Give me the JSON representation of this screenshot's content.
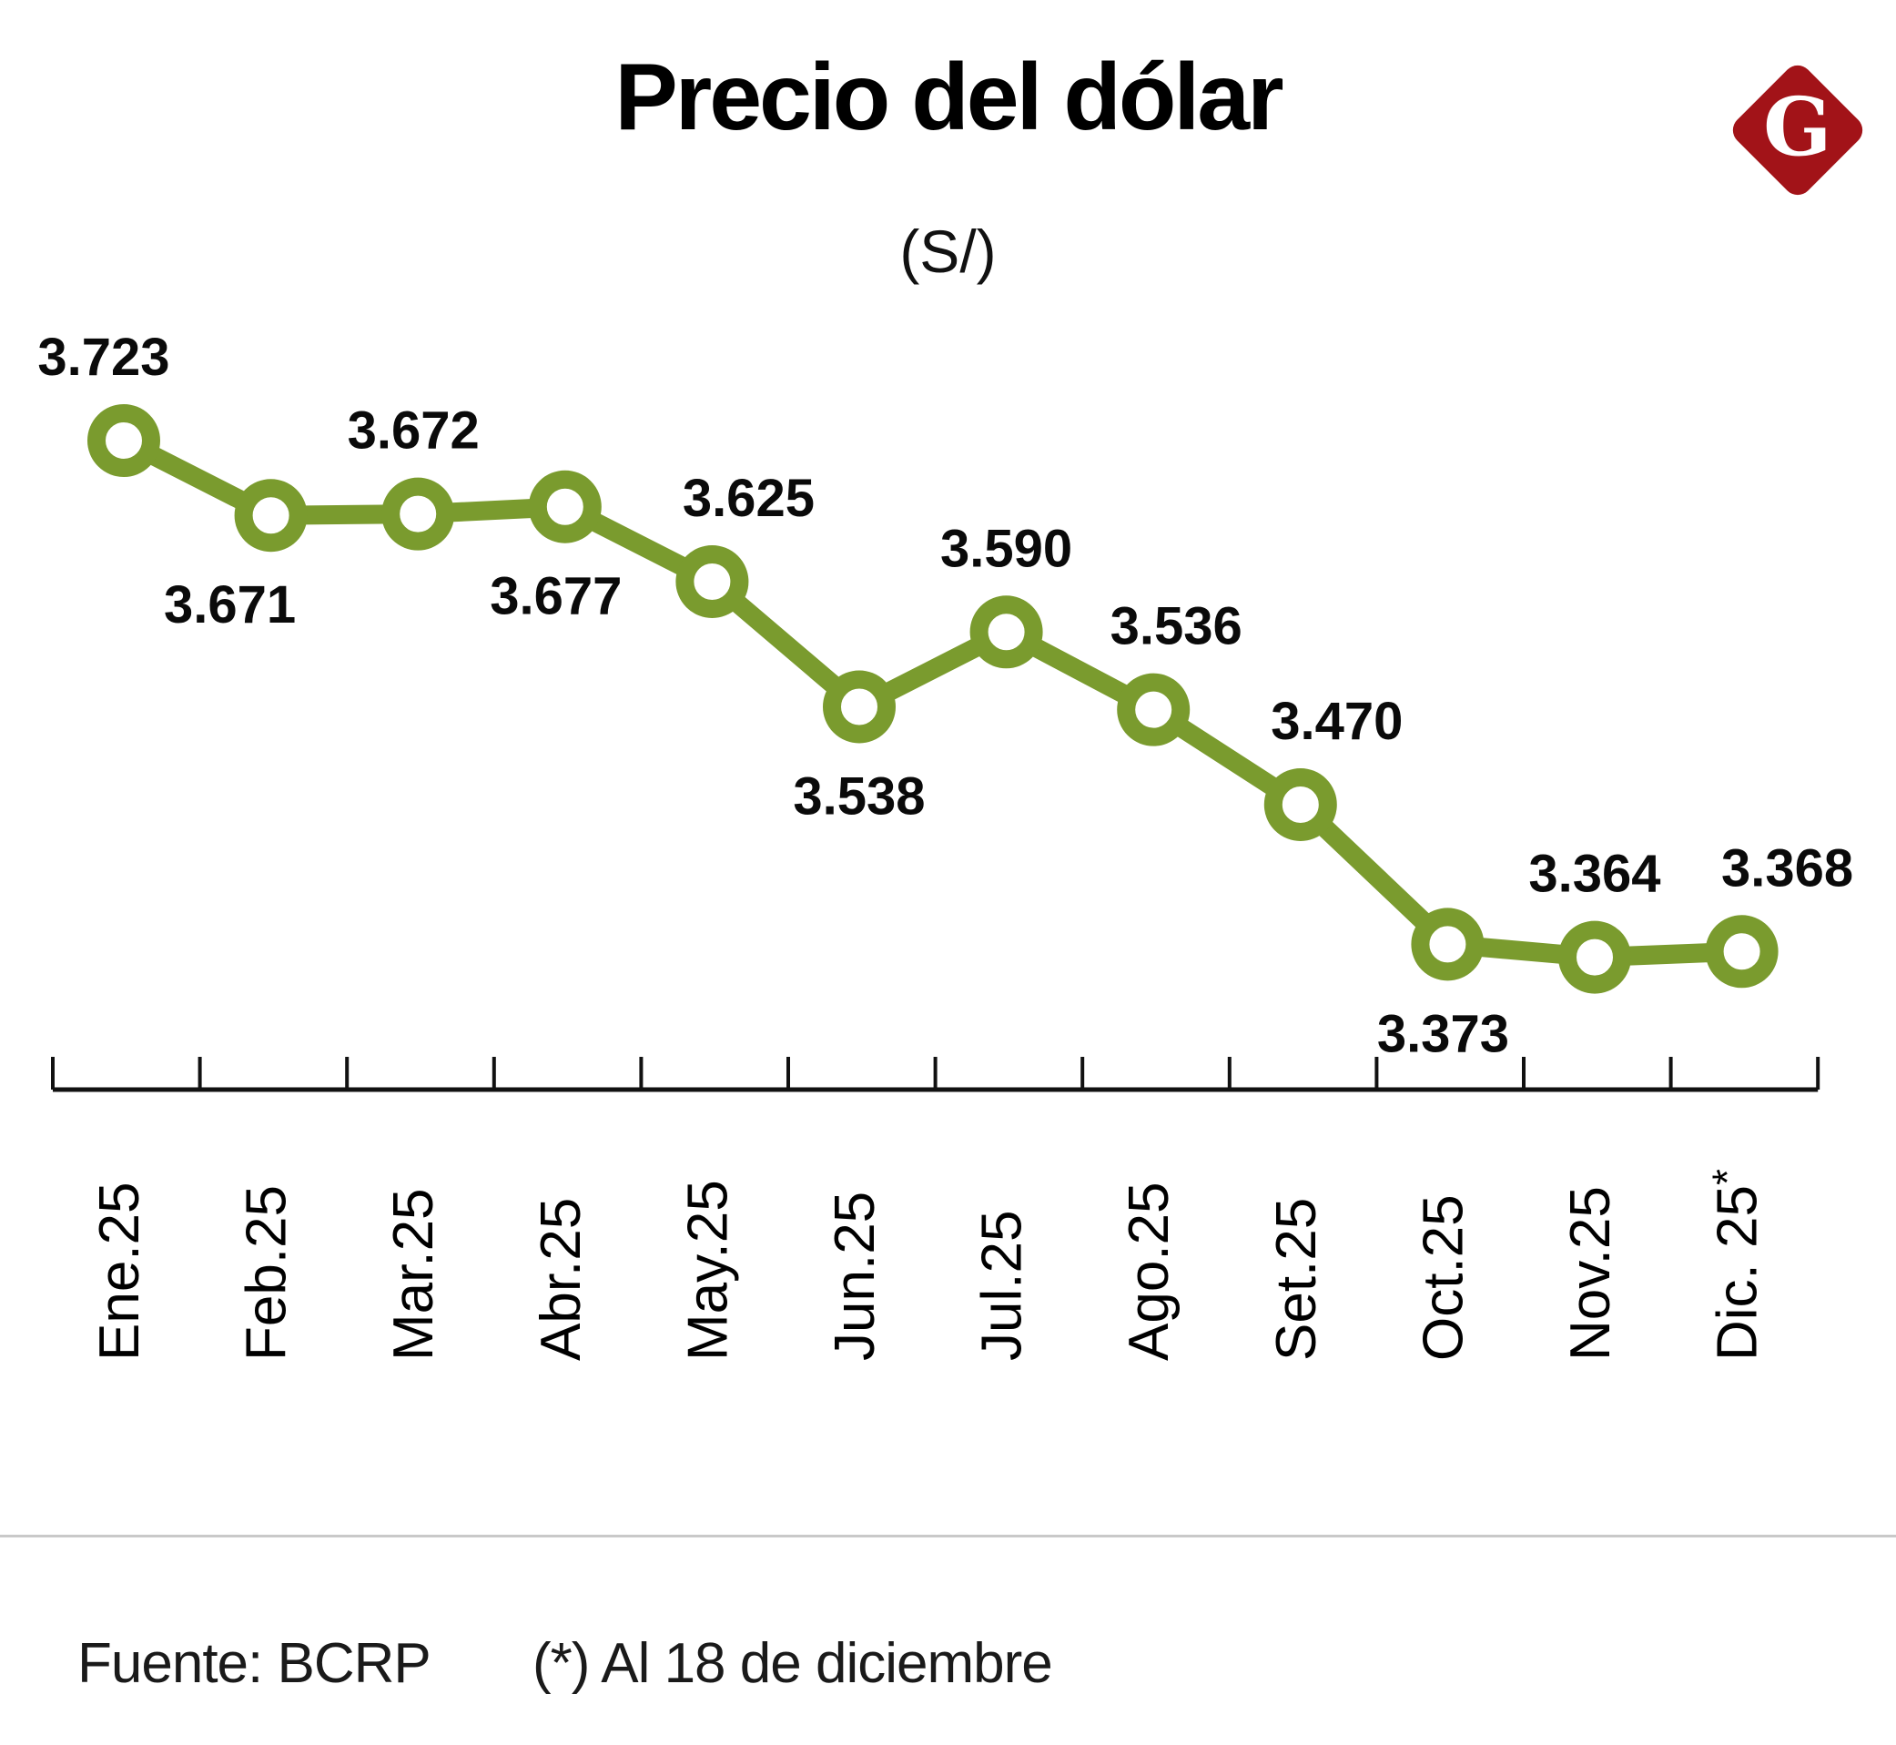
{
  "header": {
    "title": "Precio del dólar",
    "subtitle": "(S/)"
  },
  "logo": {
    "letter": "G",
    "color": "#A21318"
  },
  "footer": {
    "source": "Fuente: BCRP",
    "footnote": "(*) Al 18 de diciembre"
  },
  "colors": {
    "line": "#7A9B2E",
    "marker_fill": "#FFFFFF",
    "value_label": "#0A0A0A",
    "axis": "#111111",
    "month_label": "#000000"
  },
  "chart_data": {
    "type": "line",
    "title": "Precio del dólar",
    "unit": "S/",
    "categories": [
      "Ene.25",
      "Feb.25",
      "Mar.25",
      "Abr.25",
      "May.25",
      "Jun.25",
      "Jul.25",
      "Ago.25",
      "Set.25",
      "Oct.25",
      "Nov.25",
      "Dic. 25*"
    ],
    "values": [
      3.723,
      3.671,
      3.672,
      3.677,
      3.625,
      3.538,
      3.59,
      3.536,
      3.47,
      3.373,
      3.364,
      3.368
    ],
    "value_labels": [
      "3.723",
      "3.671",
      "3.672",
      "3.677",
      "3.625",
      "3.538",
      "3.590",
      "3.536",
      "3.470",
      "3.373",
      "3.364",
      "3.368"
    ],
    "label_positions": [
      "above",
      "below",
      "above",
      "below",
      "above",
      "below",
      "above",
      "above",
      "above",
      "below",
      "above",
      "above"
    ],
    "label_dx": [
      -22,
      -45,
      -5,
      -10,
      40,
      0,
      0,
      25,
      40,
      -5,
      0,
      50
    ],
    "marker_style": "open-circle",
    "line_width": 21,
    "ylim": [
      3.3,
      3.75
    ],
    "grid": false,
    "legend": false,
    "x_tick_style": "month-boundaries"
  }
}
